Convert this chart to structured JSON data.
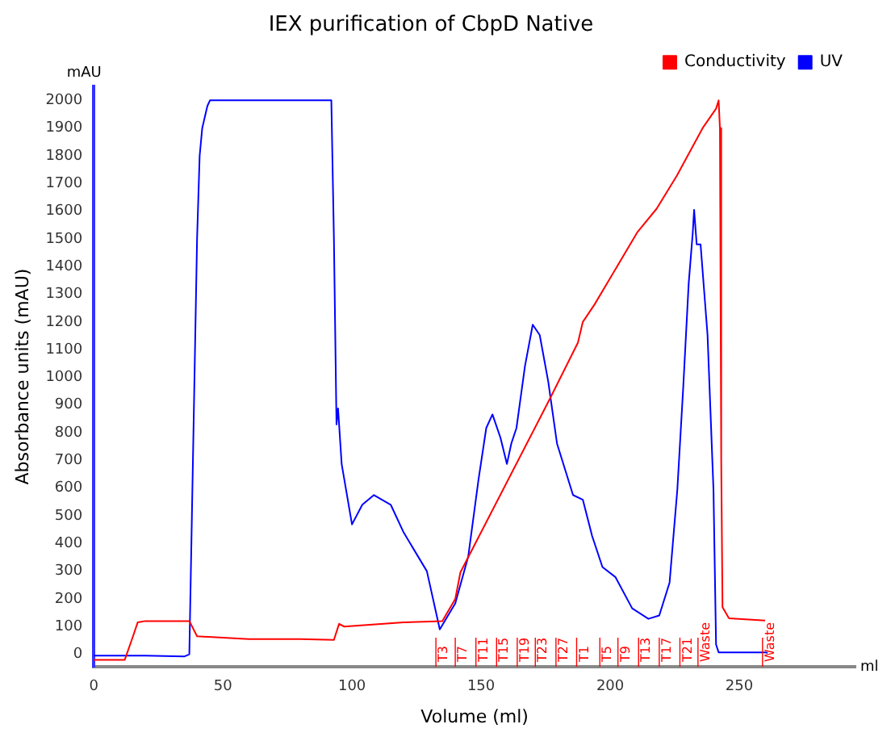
{
  "chart_data": {
    "type": "line",
    "title": "IEX purification of CbpD Native",
    "xlabel": "Volume (ml)",
    "ylabel": "Absorbance units (mAU)",
    "xlim": [
      0,
      295
    ],
    "xticks": [
      0,
      50,
      100,
      150,
      200,
      250
    ],
    "ylim": [
      -45,
      2050
    ],
    "yticks": [
      0,
      100,
      200,
      300,
      400,
      500,
      600,
      700,
      800,
      900,
      1000,
      1100,
      1200,
      1300,
      1400,
      1500,
      1600,
      1700,
      1800,
      1900,
      2000
    ],
    "grid": false,
    "legend": "top right",
    "marker": "none",
    "line_style": "solid",
    "series": [
      {
        "name": "Conductivity",
        "color": "#ff0000",
        "x": [
          0,
          12,
          15,
          17,
          20,
          37,
          40,
          60,
          80,
          93,
          95,
          97,
          120,
          135,
          140,
          142,
          177,
          187.5,
          189.4,
          194,
          210.6,
          218,
          225.8,
          235.8,
          241,
          242,
          242.5,
          243,
          243.5,
          246,
          260
        ],
        "values": [
          -20,
          -20,
          60,
          115,
          120,
          120,
          65,
          55,
          55,
          52,
          110,
          100,
          115,
          120,
          200,
          296,
          929,
          1125,
          1200,
          1264,
          1525,
          1609,
          1728,
          1900,
          1970,
          2000,
          1900,
          700,
          170,
          130,
          122
        ]
      },
      {
        "name": "UV",
        "color": "#0000ff",
        "x": [
          0,
          20,
          35,
          37,
          38,
          40,
          41,
          42,
          44,
          45,
          92,
          93,
          94,
          94.6,
          96,
          100,
          104,
          108.5,
          115,
          120,
          129,
          134,
          140,
          145,
          149,
          152,
          154.4,
          157.5,
          160,
          161.7,
          163.7,
          167,
          170,
          172.7,
          176,
          179.4,
          185.6,
          189.4,
          193,
          197,
          202,
          208.5,
          214.8,
          219,
          223,
          226,
          228.3,
          230.4,
          232,
          232.5,
          233.5,
          235,
          237.7,
          240,
          241,
          242,
          260,
          261
        ],
        "values": [
          -5,
          -5,
          -8,
          0,
          500,
          1500,
          1800,
          1900,
          1980,
          2000,
          2000,
          1500,
          830,
          888,
          687,
          469,
          540,
          575,
          540,
          440,
          300,
          90,
          184,
          352,
          631,
          817,
          866,
          782,
          687,
          761,
          817,
          1041,
          1190,
          1153,
          985,
          761,
          575,
          558,
          427,
          315,
          279,
          166,
          128,
          140,
          259,
          594,
          966,
          1339,
          1525,
          1605,
          1480,
          1480,
          1153,
          594,
          35,
          7,
          7,
          5
        ]
      }
    ],
    "annotations": [
      "mAU",
      "ml"
    ],
    "ref_lines": [
      {
        "axis": "x",
        "value": 132.5,
        "label": "T3",
        "color": "#ff0000"
      },
      {
        "axis": "x",
        "value": 140,
        "label": "T7",
        "color": "#ff0000"
      },
      {
        "axis": "x",
        "value": 148,
        "label": "T11",
        "color": "#ff0000"
      },
      {
        "axis": "x",
        "value": 156,
        "label": "T15",
        "color": "#ff0000"
      },
      {
        "axis": "x",
        "value": 164,
        "label": "T19",
        "color": "#ff0000"
      },
      {
        "axis": "x",
        "value": 171,
        "label": "T23",
        "color": "#ff0000"
      },
      {
        "axis": "x",
        "value": 179,
        "label": "T27",
        "color": "#ff0000"
      },
      {
        "axis": "x",
        "value": 187,
        "label": "T1",
        "color": "#ff0000"
      },
      {
        "axis": "x",
        "value": 196,
        "label": "T5",
        "color": "#ff0000"
      },
      {
        "axis": "x",
        "value": 203,
        "label": "T9",
        "color": "#ff0000"
      },
      {
        "axis": "x",
        "value": 211,
        "label": "T13",
        "color": "#ff0000"
      },
      {
        "axis": "x",
        "value": 219,
        "label": "T17",
        "color": "#ff0000"
      },
      {
        "axis": "x",
        "value": 227,
        "label": "T21",
        "color": "#ff0000"
      },
      {
        "axis": "x",
        "value": 234,
        "label": "Waste",
        "color": "#ff0000"
      },
      {
        "axis": "x",
        "value": 259,
        "label": "Waste",
        "color": "#ff0000"
      }
    ]
  }
}
